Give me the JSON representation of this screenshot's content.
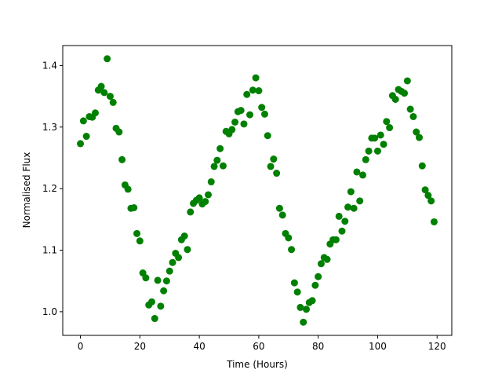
{
  "chart_data": {
    "type": "scatter",
    "xlabel": "Time (Hours)",
    "ylabel": "Normalised Flux",
    "color": "#008000",
    "x": [
      0,
      1,
      2,
      3,
      4,
      5,
      6,
      7,
      8,
      9,
      10,
      11,
      12,
      13,
      14,
      15,
      16,
      17,
      18,
      19,
      20,
      21,
      22,
      23,
      24,
      25,
      26,
      27,
      28,
      29,
      30,
      31,
      32,
      33,
      34,
      35,
      36,
      37,
      38,
      39,
      40,
      41,
      42,
      43,
      44,
      45,
      46,
      47,
      48,
      49,
      50,
      51,
      52,
      53,
      54,
      55,
      56,
      57,
      58,
      59,
      60,
      61,
      62,
      63,
      64,
      65,
      66,
      67,
      68,
      69,
      70,
      71,
      72,
      73,
      74,
      75,
      76,
      77,
      78,
      79,
      80,
      81,
      82,
      83,
      84,
      85,
      86,
      87,
      88,
      89,
      90,
      91,
      92,
      93,
      94,
      95,
      96,
      97,
      98,
      99,
      100,
      101,
      102,
      103,
      104,
      105,
      106,
      107,
      108,
      109,
      110,
      111,
      112,
      113,
      114,
      115,
      116,
      117,
      118,
      119
    ],
    "values": [
      1.273,
      1.31,
      1.285,
      1.317,
      1.316,
      1.323,
      1.36,
      1.366,
      1.356,
      1.411,
      1.35,
      1.34,
      1.298,
      1.292,
      1.247,
      1.206,
      1.199,
      1.168,
      1.169,
      1.127,
      1.115,
      1.063,
      1.055,
      1.011,
      1.016,
      0.989,
      1.051,
      1.009,
      1.034,
      1.05,
      1.066,
      1.08,
      1.095,
      1.088,
      1.117,
      1.123,
      1.101,
      1.162,
      1.176,
      1.181,
      1.185,
      1.175,
      1.179,
      1.19,
      1.211,
      1.236,
      1.246,
      1.265,
      1.237,
      1.293,
      1.289,
      1.296,
      1.308,
      1.325,
      1.327,
      1.305,
      1.353,
      1.32,
      1.36,
      1.38,
      1.359,
      1.332,
      1.321,
      1.286,
      1.236,
      1.248,
      1.225,
      1.168,
      1.157,
      1.127,
      1.12,
      1.101,
      1.047,
      1.032,
      1.007,
      0.983,
      1.004,
      1.015,
      1.018,
      1.043,
      1.057,
      1.078,
      1.088,
      1.085,
      1.11,
      1.117,
      1.117,
      1.155,
      1.131,
      1.147,
      1.17,
      1.195,
      1.168,
      1.227,
      1.18,
      1.222,
      1.247,
      1.261,
      1.282,
      1.282,
      1.261,
      1.287,
      1.272,
      1.309,
      1.299,
      1.351,
      1.345,
      1.361,
      1.358,
      1.355,
      1.375,
      1.329,
      1.317,
      1.292,
      1.283,
      1.237,
      1.198,
      1.189,
      1.18,
      1.146
    ],
    "xlim": [
      -5.95,
      124.95
    ],
    "ylim": [
      0.9616,
      1.4324
    ],
    "xticks": [
      0,
      20,
      40,
      60,
      80,
      100,
      120
    ],
    "yticks": [
      {
        "value": 1,
        "label": "1.0"
      },
      1.1,
      1.2,
      1.3,
      1.4
    ]
  }
}
